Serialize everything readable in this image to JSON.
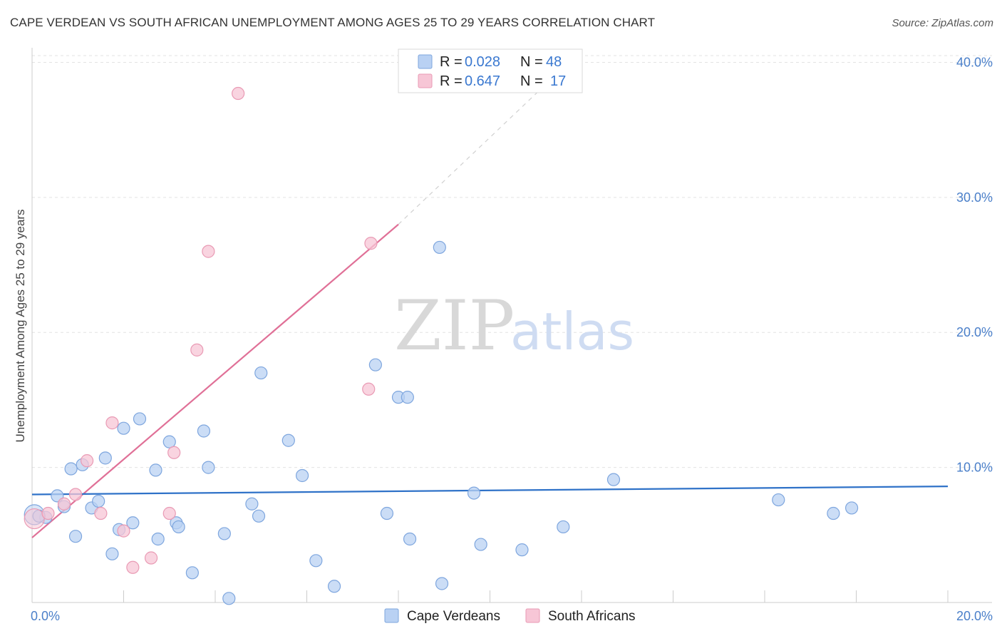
{
  "title": "CAPE VERDEAN VS SOUTH AFRICAN UNEMPLOYMENT AMONG AGES 25 TO 29 YEARS CORRELATION CHART",
  "source": "Source: ZipAtlas.com",
  "watermark": {
    "part1": "ZIP",
    "part2": "atlas"
  },
  "colors": {
    "blue_fill": "#b9d1f3",
    "blue_stroke": "#7ea6de",
    "blue_line": "#2f72c8",
    "pink_fill": "#f7c6d6",
    "pink_stroke": "#e99ab4",
    "pink_line": "#e07097",
    "grid": "#e3e3e3",
    "axis": "#cccccc"
  },
  "legend": {
    "rows": [
      {
        "r_label": "R =",
        "r_value": "0.028",
        "n_label": "N =",
        "n_value": "48"
      },
      {
        "r_label": "R =",
        "r_value": "0.647",
        "n_label": "N =",
        "n_value": "17"
      }
    ]
  },
  "chart_data": {
    "type": "scatter",
    "title": "CAPE VERDEAN VS SOUTH AFRICAN UNEMPLOYMENT AMONG AGES 25 TO 29 YEARS CORRELATION CHART",
    "xlabel": "",
    "ylabel": "Unemployment Among Ages 25 to 29 years",
    "xlim": [
      0,
      20
    ],
    "ylim": [
      0,
      40.5
    ],
    "x_tick_labels": [
      {
        "value": 0,
        "label": "0.0%"
      },
      {
        "value": 20,
        "label": "20.0%"
      }
    ],
    "y_tick_labels": [
      {
        "value": 10,
        "label": "10.0%"
      },
      {
        "value": 20,
        "label": "20.0%"
      },
      {
        "value": 30,
        "label": "30.0%"
      },
      {
        "value": 40,
        "label": "40.0%"
      }
    ],
    "x_minor_ticks": [
      2,
      4,
      6,
      8,
      10,
      12,
      14,
      16,
      18,
      20
    ],
    "grid": true,
    "legend_position": "bottom",
    "series": [
      {
        "name": "Cape Verdeans",
        "color": "#b9d1f3",
        "trend": {
          "x0": 0,
          "y0": 8.0,
          "x1": 20,
          "y1": 8.6
        },
        "points": [
          {
            "x": 0.05,
            "y": 6.5
          },
          {
            "x": 0.3,
            "y": 6.3
          },
          {
            "x": 0.55,
            "y": 7.9
          },
          {
            "x": 0.7,
            "y": 7.1
          },
          {
            "x": 0.85,
            "y": 9.9
          },
          {
            "x": 0.95,
            "y": 4.9
          },
          {
            "x": 1.1,
            "y": 10.2
          },
          {
            "x": 1.3,
            "y": 7.0
          },
          {
            "x": 1.45,
            "y": 7.5
          },
          {
            "x": 1.6,
            "y": 10.7
          },
          {
            "x": 1.75,
            "y": 3.6
          },
          {
            "x": 1.9,
            "y": 5.4
          },
          {
            "x": 2.0,
            "y": 12.9
          },
          {
            "x": 2.2,
            "y": 5.9
          },
          {
            "x": 2.35,
            "y": 13.6
          },
          {
            "x": 2.7,
            "y": 9.8
          },
          {
            "x": 2.75,
            "y": 4.7
          },
          {
            "x": 3.0,
            "y": 11.9
          },
          {
            "x": 3.15,
            "y": 5.9
          },
          {
            "x": 3.2,
            "y": 5.6
          },
          {
            "x": 3.5,
            "y": 2.2
          },
          {
            "x": 3.75,
            "y": 12.7
          },
          {
            "x": 3.85,
            "y": 10.0
          },
          {
            "x": 4.2,
            "y": 5.1
          },
          {
            "x": 4.3,
            "y": 0.3
          },
          {
            "x": 4.8,
            "y": 7.3
          },
          {
            "x": 4.95,
            "y": 6.4
          },
          {
            "x": 5.0,
            "y": 17.0
          },
          {
            "x": 5.6,
            "y": 12.0
          },
          {
            "x": 5.9,
            "y": 9.4
          },
          {
            "x": 6.2,
            "y": 3.1
          },
          {
            "x": 6.6,
            "y": 1.2
          },
          {
            "x": 7.5,
            "y": 17.6
          },
          {
            "x": 7.75,
            "y": 6.6
          },
          {
            "x": 8.0,
            "y": 15.2
          },
          {
            "x": 8.2,
            "y": 15.2
          },
          {
            "x": 8.25,
            "y": 4.7
          },
          {
            "x": 8.9,
            "y": 26.3
          },
          {
            "x": 8.95,
            "y": 1.4
          },
          {
            "x": 9.65,
            "y": 8.1
          },
          {
            "x": 9.8,
            "y": 4.3
          },
          {
            "x": 10.7,
            "y": 3.9
          },
          {
            "x": 11.6,
            "y": 5.6
          },
          {
            "x": 12.7,
            "y": 9.1
          },
          {
            "x": 16.3,
            "y": 7.6
          },
          {
            "x": 17.9,
            "y": 7.0
          },
          {
            "x": 17.5,
            "y": 6.6
          },
          {
            "x": 0.15,
            "y": 6.4
          }
        ]
      },
      {
        "name": "South Africans",
        "color": "#f7c6d6",
        "trend": {
          "x0": 0,
          "y0": 4.8,
          "x1": 8.0,
          "y1": 28.0,
          "dash_to_x": 11.6,
          "dash_to_y": 39.6
        },
        "points": [
          {
            "x": 0.05,
            "y": 6.2
          },
          {
            "x": 0.35,
            "y": 6.6
          },
          {
            "x": 0.7,
            "y": 7.3
          },
          {
            "x": 0.95,
            "y": 8.0
          },
          {
            "x": 1.2,
            "y": 10.5
          },
          {
            "x": 1.5,
            "y": 6.6
          },
          {
            "x": 1.75,
            "y": 13.3
          },
          {
            "x": 2.0,
            "y": 5.3
          },
          {
            "x": 2.2,
            "y": 2.6
          },
          {
            "x": 2.6,
            "y": 3.3
          },
          {
            "x": 3.0,
            "y": 6.6
          },
          {
            "x": 3.1,
            "y": 11.1
          },
          {
            "x": 3.6,
            "y": 18.7
          },
          {
            "x": 3.85,
            "y": 26.0
          },
          {
            "x": 4.5,
            "y": 37.7
          },
          {
            "x": 7.35,
            "y": 15.8
          },
          {
            "x": 7.4,
            "y": 26.6
          }
        ]
      }
    ]
  },
  "bottom_legend": [
    "Cape Verdeans",
    "South Africans"
  ]
}
